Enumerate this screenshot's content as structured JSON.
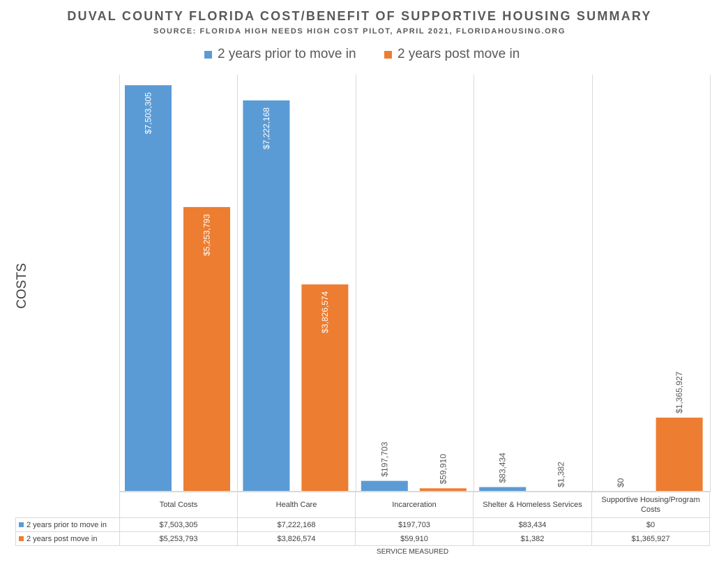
{
  "chart_data": {
    "type": "bar",
    "title": "DUVAL COUNTY FLORIDA COST/BENEFIT OF SUPPORTIVE HOUSING SUMMARY",
    "subtitle": "SOURCE: FLORIDA HIGH NEEDS HIGH COST PILOT, APRIL 2021, FLORIDAHOUSING.ORG",
    "xlabel": "SERVICE MEASURED",
    "ylabel": "COSTS",
    "legend_position": "top",
    "grid": "vertical category dividers",
    "ylim": [
      0,
      7600000
    ],
    "categories": [
      "Total Costs",
      "Health Care",
      "Incarceration",
      "Shelter & Homeless Services",
      "Supportive Housing/Program Costs"
    ],
    "series": [
      {
        "name": "2 years prior to move in",
        "color": "#5b9bd5",
        "values": [
          7503305,
          7222168,
          197703,
          83434,
          0
        ],
        "labels": [
          "$7,503,305",
          "$7,222,168",
          "$197,703",
          "$83,434",
          "$0"
        ]
      },
      {
        "name": "2 years post move in",
        "color": "#ed7d31",
        "values": [
          5253793,
          3826574,
          59910,
          1382,
          1365927
        ],
        "labels": [
          "$5,253,793",
          "$3,826,574",
          "$59,910",
          "$1,382",
          "$1,365,927"
        ]
      }
    ]
  }
}
